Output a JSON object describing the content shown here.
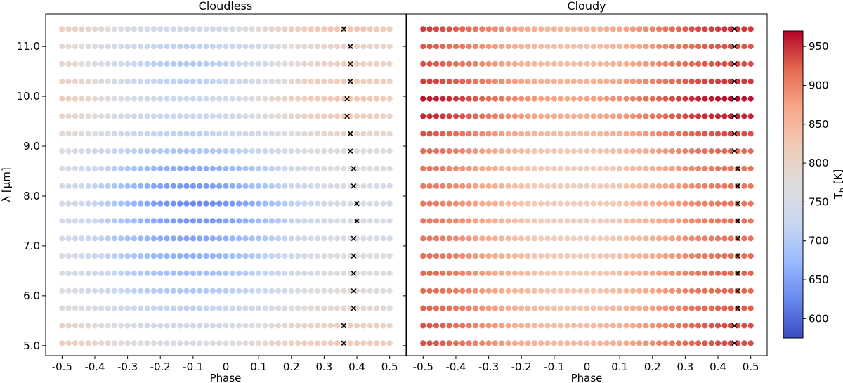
{
  "chart_data": {
    "type": "scatter",
    "phases": [
      -0.5,
      -0.48,
      -0.46,
      -0.44,
      -0.42,
      -0.4,
      -0.38,
      -0.36,
      -0.34,
      -0.32,
      -0.3,
      -0.28,
      -0.26,
      -0.24,
      -0.22,
      -0.2,
      -0.18,
      -0.16,
      -0.14,
      -0.12,
      -0.1,
      -0.08,
      -0.06,
      -0.04,
      -0.02,
      0.0,
      0.02,
      0.04,
      0.06,
      0.08,
      0.1,
      0.12,
      0.14,
      0.16,
      0.18,
      0.2,
      0.22,
      0.24,
      0.26,
      0.28,
      0.3,
      0.32,
      0.34,
      0.36,
      0.38,
      0.4,
      0.42,
      0.44,
      0.46,
      0.48,
      0.5
    ],
    "wavelengths": [
      5.05,
      5.4,
      5.75,
      6.1,
      6.45,
      6.8,
      7.15,
      7.5,
      7.85,
      8.2,
      8.55,
      8.9,
      9.25,
      9.6,
      9.95,
      10.3,
      10.65,
      11.0,
      11.35
    ],
    "xlabel": "Phase",
    "ylabel": "λ [μm]",
    "xlim": [
      -0.55,
      0.55
    ],
    "ylim": [
      4.8,
      11.65
    ],
    "xticks": [
      -0.5,
      -0.4,
      -0.3,
      -0.2,
      -0.1,
      0,
      0.1,
      0.2,
      0.3,
      0.4,
      0.5
    ],
    "xtick_labels": [
      "-0.5",
      "-0.4",
      "-0.3",
      "-0.2",
      "-0.1",
      "0",
      "0.1",
      "0.2",
      "0.3",
      "0.4",
      "0.5"
    ],
    "yticks": [
      5.0,
      6.0,
      7.0,
      8.0,
      9.0,
      10.0,
      11.0
    ],
    "ytick_labels": [
      "5.0",
      "6.0",
      "7.0",
      "8.0",
      "9.0",
      "10.0",
      "11.0"
    ],
    "colorbar": {
      "label_main": "T",
      "label_sub": "b",
      "label_unit": " [K]",
      "range": [
        575,
        970
      ],
      "ticks": [
        600,
        650,
        700,
        750,
        800,
        850,
        900,
        950
      ],
      "tick_labels": [
        "600",
        "650",
        "700",
        "750",
        "800",
        "850",
        "900",
        "950"
      ],
      "colormap": "coolwarm",
      "colors": [
        "#3b4cc0",
        "#6788ee",
        "#9abbff",
        "#c9d7f0",
        "#dddddd",
        "#f2cbb7",
        "#f7a889",
        "#e26952",
        "#b40426"
      ]
    },
    "panels": [
      {
        "title": "Cloudless",
        "min_temp": [
          760,
          740,
          715,
          695,
          680,
          662,
          652,
          640,
          628,
          640,
          658,
          692,
          712,
          722,
          732,
          712,
          698,
          712,
          738
        ],
        "max_temp": [
          822,
          812,
          790,
          780,
          772,
          772,
          760,
          760,
          758,
          765,
          772,
          778,
          798,
          818,
          832,
          818,
          812,
          802,
          832
        ],
        "trough_phase": -0.15,
        "peak_phase": [
          0.37,
          0.37,
          0.38,
          0.38,
          0.39,
          0.39,
          0.39,
          0.41,
          0.41,
          0.39,
          0.39,
          0.38,
          0.38,
          0.37,
          0.37,
          0.38,
          0.38,
          0.38,
          0.36
        ],
        "max_marker_phase": [
          0.36,
          0.36,
          0.39,
          0.39,
          0.39,
          0.39,
          0.39,
          0.4,
          0.4,
          0.39,
          0.39,
          0.38,
          0.38,
          0.37,
          0.37,
          0.38,
          0.38,
          0.38,
          0.36
        ]
      },
      {
        "title": "Cloudy",
        "min_temp": [
          848,
          840,
          832,
          826,
          822,
          818,
          812,
          810,
          810,
          810,
          812,
          822,
          842,
          862,
          872,
          855,
          842,
          836,
          852
        ],
        "max_temp": [
          935,
          935,
          925,
          922,
          922,
          918,
          912,
          910,
          910,
          910,
          912,
          922,
          935,
          955,
          965,
          945,
          935,
          932,
          945
        ],
        "trough_phase": 0.05,
        "peak_phase": [
          0.45,
          0.45,
          0.46,
          0.46,
          0.46,
          0.46,
          0.46,
          0.46,
          0.46,
          0.46,
          0.46,
          0.45,
          0.45,
          0.45,
          0.45,
          0.45,
          0.45,
          0.45,
          0.45
        ],
        "max_marker_phase": [
          0.45,
          0.45,
          0.46,
          0.46,
          0.46,
          0.46,
          0.46,
          0.46,
          0.46,
          0.46,
          0.46,
          0.45,
          0.45,
          0.45,
          0.45,
          0.45,
          0.45,
          0.45,
          0.45
        ]
      }
    ]
  }
}
